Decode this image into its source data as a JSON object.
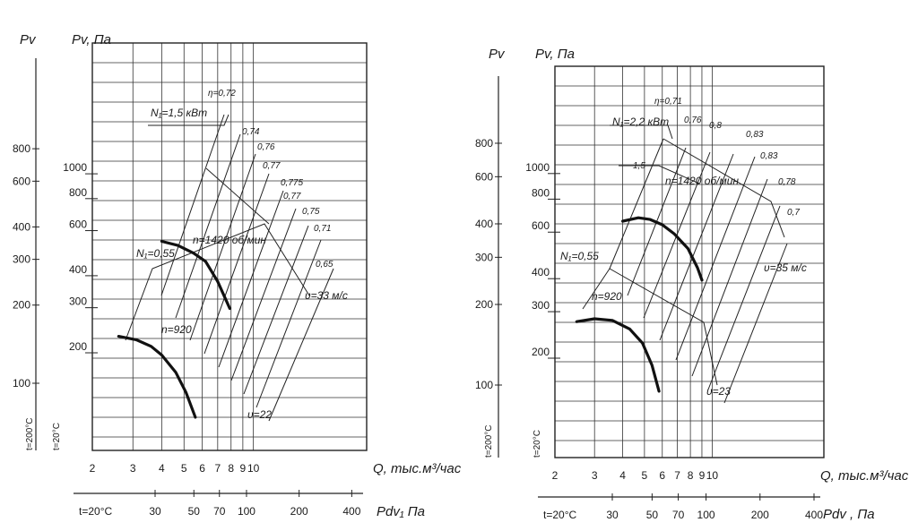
{
  "chart_data": [
    {
      "type": "line",
      "id": "left",
      "axis_titles": {
        "pv_outer": "Pv",
        "pv_inner": "Pv, Па",
        "q": "Q, тыс.м³/час",
        "pdv": "Pdv₁ Па",
        "t200": "t=200°C",
        "t20": "t=20°C",
        "t20_bottom": "t=20°C"
      },
      "q_ticks": [
        2,
        3,
        4,
        5,
        6,
        7,
        8,
        9,
        10
      ],
      "pv20_ticks": [
        200,
        300,
        400,
        600,
        800,
        1000
      ],
      "pv200_ticks": [
        100,
        200,
        300,
        400,
        600,
        800
      ],
      "pdv_ticks": [
        30,
        50,
        70,
        100,
        200,
        400
      ],
      "speed_lines": [
        {
          "speed": "n=1420 об/мин",
          "q": [
            4.0,
            4.7,
            5.5,
            6.2,
            7.0,
            7.9
          ],
          "pv": [
            545,
            525,
            490,
            455,
            380,
            298
          ]
        },
        {
          "speed": "n=920",
          "q": [
            2.6,
            3.1,
            3.6,
            4.0,
            4.6,
            5.1,
            5.6
          ],
          "pv": [
            232,
            225,
            212,
            196,
            168,
            140,
            112
          ]
        }
      ],
      "velocity_labels": [
        "υ=33 м/с",
        "υ=22"
      ],
      "power_labels": [
        "N₁=1,5 кВт",
        "N₁=0,55"
      ],
      "efficiency_labels": [
        "η=0,72",
        "0,74",
        "0,76",
        "0,77",
        "0,775",
        "0,77",
        "0,75",
        "0,71",
        "0,65"
      ]
    },
    {
      "type": "line",
      "id": "right",
      "axis_titles": {
        "pv_outer": "Pv",
        "pv_inner": "Pv, Па",
        "q": "Q, тыс.м³/час",
        "pdv": "Pdv , Па",
        "t200": "t=200°C",
        "t20": "t=20°C",
        "t20_bottom": "t=20°C"
      },
      "q_ticks": [
        2,
        3,
        4,
        5,
        6,
        7,
        8,
        9,
        10
      ],
      "pv20_ticks": [
        200,
        300,
        400,
        600,
        800,
        1000
      ],
      "pv200_ticks": [
        100,
        200,
        300,
        400,
        600,
        800
      ],
      "pdv_ticks": [
        30,
        50,
        70,
        100,
        200,
        400
      ],
      "speed_lines": [
        {
          "speed": "n=1420 об/мин",
          "q": [
            4.0,
            4.7,
            5.3,
            6.0,
            6.8,
            7.8,
            8.6,
            9.0
          ],
          "pv": [
            660,
            680,
            670,
            640,
            590,
            520,
            440,
            395
          ]
        },
        {
          "speed": "n=920",
          "q": [
            2.5,
            3.0,
            3.6,
            4.3,
            4.9,
            5.4,
            5.8
          ],
          "pv": [
            275,
            282,
            278,
            258,
            228,
            188,
            150
          ]
        }
      ],
      "velocity_labels": [
        "υ=35 м/с",
        "υ=23"
      ],
      "power_labels": [
        "N₁=2,2 кВт",
        "N₁=0,55",
        "1,5"
      ],
      "efficiency_labels": [
        "η=0,71",
        "0,76",
        "0,8",
        "0,83",
        "0,83",
        "0,78",
        "0,7"
      ]
    }
  ]
}
